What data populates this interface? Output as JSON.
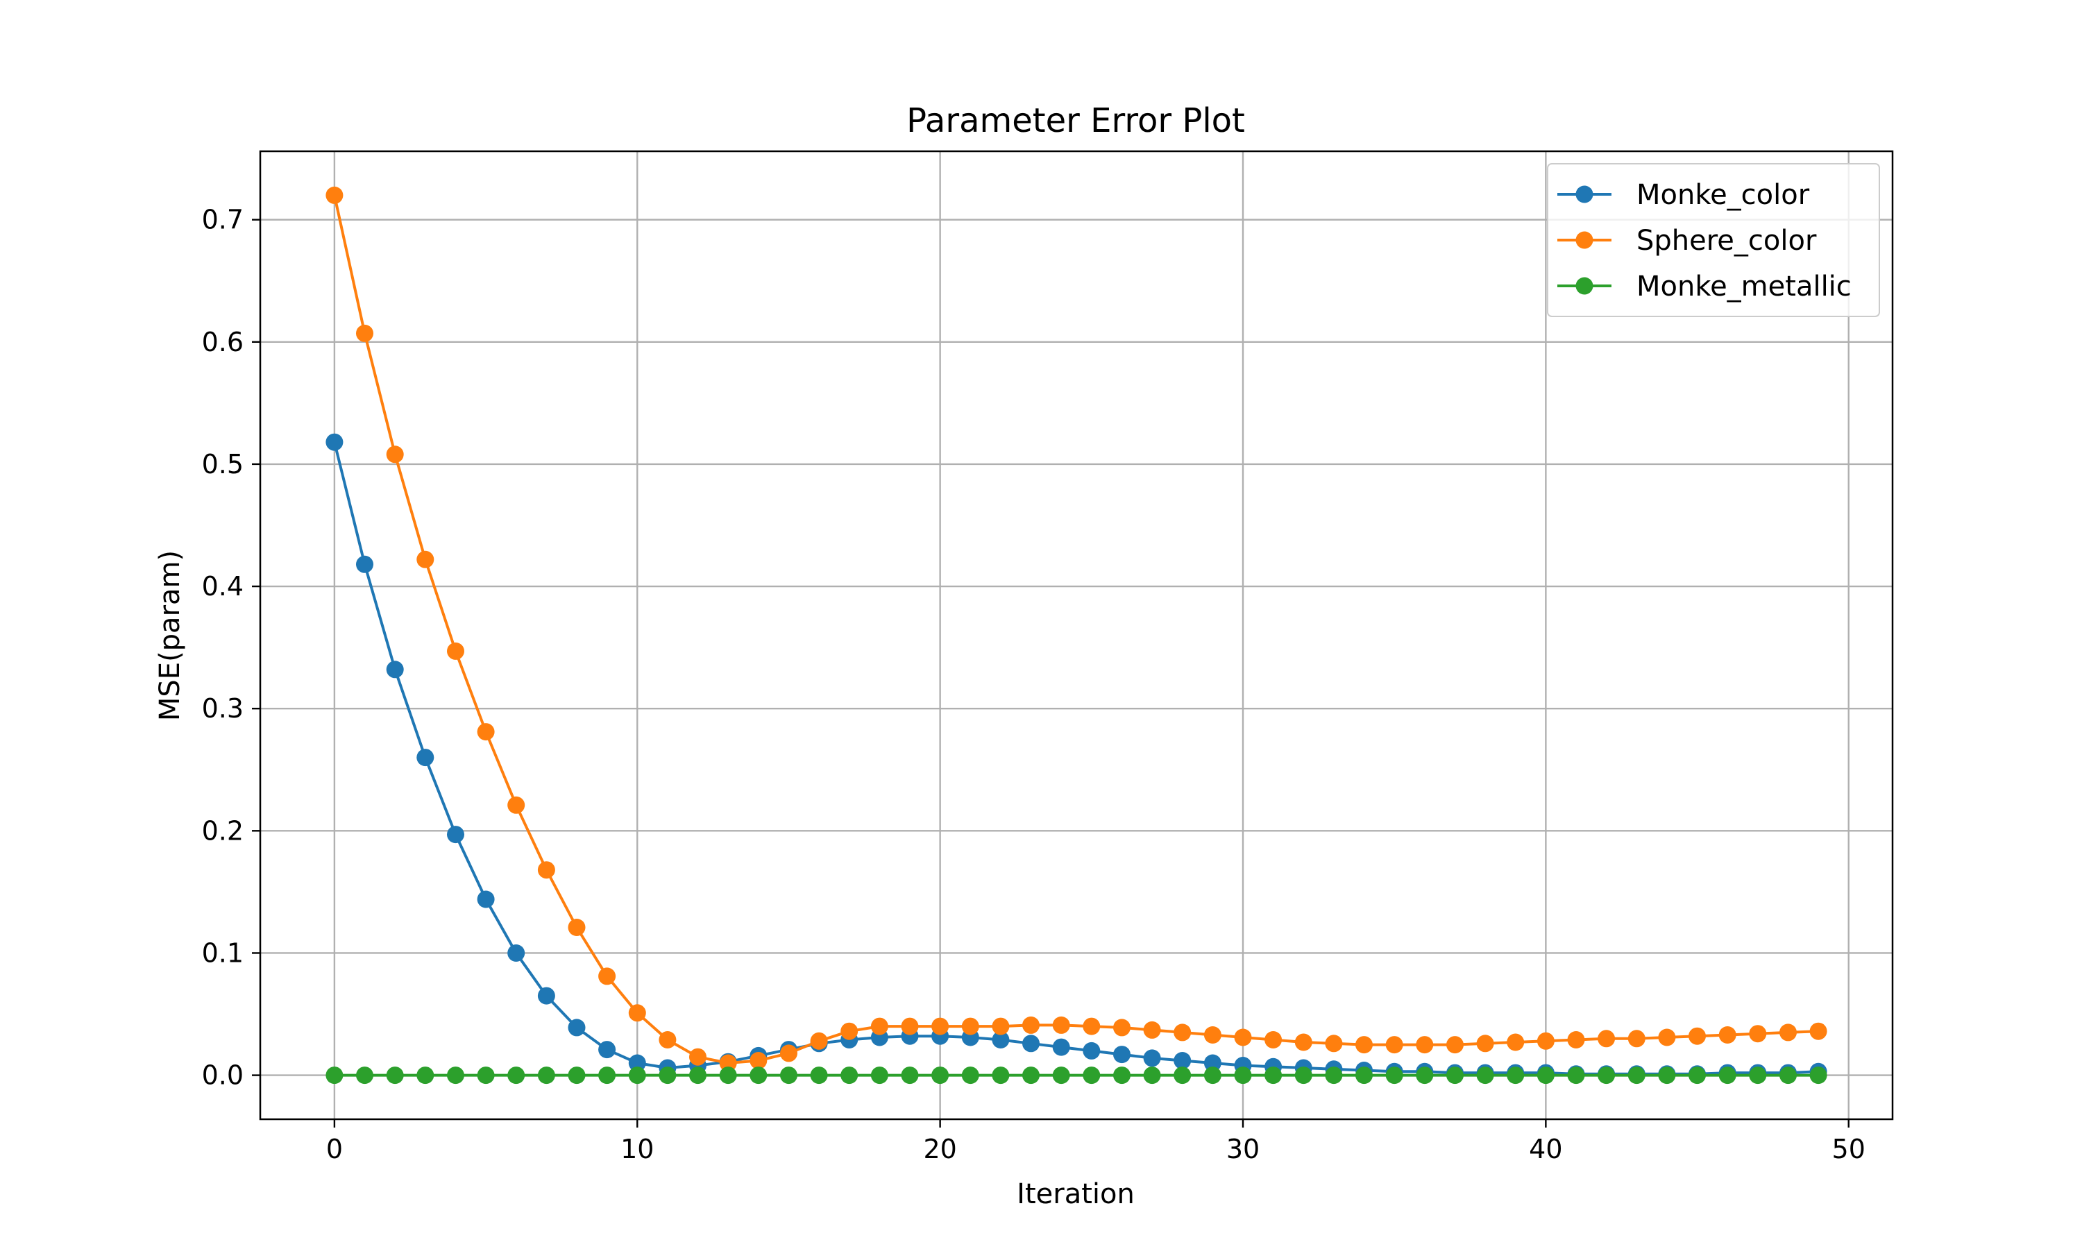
{
  "chart_data": {
    "type": "line",
    "title": "Parameter Error Plot",
    "xlabel": "Iteration",
    "ylabel": "MSE(param)",
    "xlim": [
      -2.45,
      51.45
    ],
    "ylim": [
      -0.036,
      0.756
    ],
    "xticks": [
      0,
      10,
      20,
      30,
      40,
      50
    ],
    "xtick_labels": [
      "0",
      "10",
      "20",
      "30",
      "40",
      "50"
    ],
    "yticks": [
      0.0,
      0.1,
      0.2,
      0.3,
      0.4,
      0.5,
      0.6,
      0.7
    ],
    "ytick_labels": [
      "0.0",
      "0.1",
      "0.2",
      "0.3",
      "0.4",
      "0.5",
      "0.6",
      "0.7"
    ],
    "grid": true,
    "legend_position": "top-right",
    "x": [
      0,
      1,
      2,
      3,
      4,
      5,
      6,
      7,
      8,
      9,
      10,
      11,
      12,
      13,
      14,
      15,
      16,
      17,
      18,
      19,
      20,
      21,
      22,
      23,
      24,
      25,
      26,
      27,
      28,
      29,
      30,
      31,
      32,
      33,
      34,
      35,
      36,
      37,
      38,
      39,
      40,
      41,
      42,
      43,
      44,
      45,
      46,
      47,
      48,
      49
    ],
    "series": [
      {
        "name": "Monke_color",
        "color": "#1f77b4",
        "values": [
          0.518,
          0.418,
          0.332,
          0.26,
          0.197,
          0.144,
          0.1,
          0.065,
          0.039,
          0.021,
          0.01,
          0.006,
          0.008,
          0.011,
          0.016,
          0.021,
          0.026,
          0.029,
          0.031,
          0.032,
          0.032,
          0.031,
          0.029,
          0.026,
          0.023,
          0.02,
          0.017,
          0.014,
          0.012,
          0.01,
          0.008,
          0.007,
          0.006,
          0.005,
          0.004,
          0.003,
          0.003,
          0.002,
          0.002,
          0.002,
          0.002,
          0.001,
          0.001,
          0.001,
          0.001,
          0.001,
          0.002,
          0.002,
          0.002,
          0.003
        ]
      },
      {
        "name": "Sphere_color",
        "color": "#ff7f0e",
        "values": [
          0.72,
          0.607,
          0.508,
          0.422,
          0.347,
          0.281,
          0.221,
          0.168,
          0.121,
          0.081,
          0.051,
          0.029,
          0.015,
          0.01,
          0.012,
          0.018,
          0.028,
          0.036,
          0.04,
          0.04,
          0.04,
          0.04,
          0.04,
          0.041,
          0.041,
          0.04,
          0.039,
          0.037,
          0.035,
          0.033,
          0.031,
          0.029,
          0.027,
          0.026,
          0.025,
          0.025,
          0.025,
          0.025,
          0.026,
          0.027,
          0.028,
          0.029,
          0.03,
          0.03,
          0.031,
          0.032,
          0.033,
          0.034,
          0.035,
          0.036
        ]
      },
      {
        "name": "Monke_metallic",
        "color": "#2ca02c",
        "values": [
          0.0,
          0.0,
          0.0,
          0.0,
          0.0,
          0.0,
          0.0,
          0.0,
          0.0,
          0.0,
          0.0,
          0.0,
          0.0,
          0.0,
          0.0,
          0.0,
          0.0,
          0.0,
          0.0,
          0.0,
          0.0,
          0.0,
          0.0,
          0.0,
          0.0,
          0.0,
          0.0,
          0.0,
          0.0,
          0.0,
          0.0,
          0.0,
          0.0,
          0.0,
          0.0,
          0.0,
          0.0,
          0.0,
          0.0,
          0.0,
          0.0,
          0.0,
          0.0,
          0.0,
          0.0,
          0.0,
          0.0,
          0.0,
          0.0,
          0.0
        ]
      }
    ]
  }
}
